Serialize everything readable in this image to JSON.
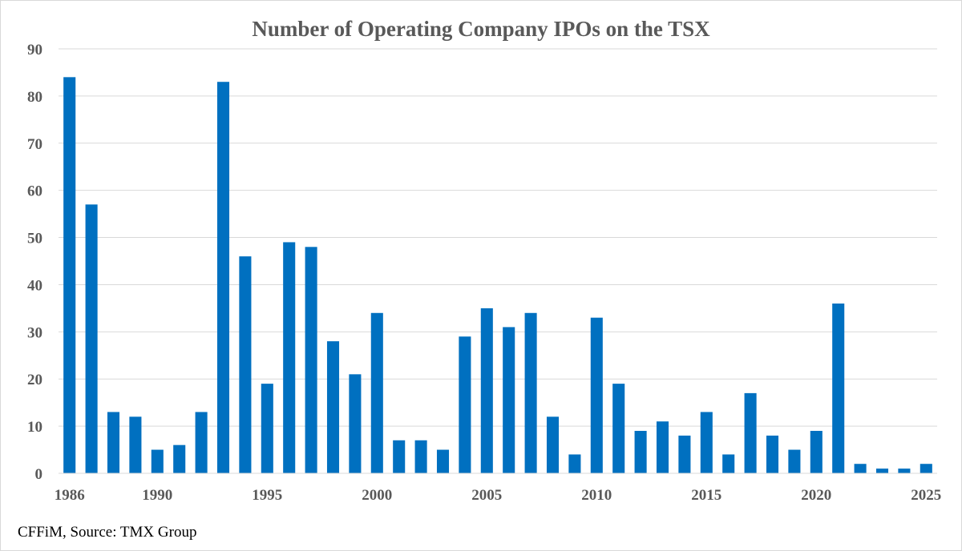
{
  "chart_data": {
    "type": "bar",
    "title": "Number of Operating Company IPOs on the TSX",
    "source_note": "CFFiM, Source: TMX Group",
    "xlabel": "",
    "ylabel": "",
    "ylim": [
      0,
      90
    ],
    "yticks": [
      0,
      10,
      20,
      30,
      40,
      50,
      60,
      70,
      80,
      90
    ],
    "x_tick_labels": [
      "1986",
      "1990",
      "1995",
      "2000",
      "2005",
      "2010",
      "2015",
      "2020",
      "2025"
    ],
    "grid": true,
    "legend": "none",
    "bar_color": "#0070C0",
    "categories": [
      1986,
      1987,
      1988,
      1989,
      1990,
      1991,
      1992,
      1993,
      1994,
      1995,
      1996,
      1997,
      1998,
      1999,
      2000,
      2001,
      2002,
      2003,
      2004,
      2005,
      2006,
      2007,
      2008,
      2009,
      2010,
      2011,
      2012,
      2013,
      2014,
      2015,
      2016,
      2017,
      2018,
      2019,
      2020,
      2021,
      2022,
      2023,
      2024,
      2025
    ],
    "values": [
      84,
      57,
      13,
      12,
      5,
      6,
      13,
      83,
      46,
      19,
      49,
      48,
      28,
      21,
      34,
      7,
      7,
      5,
      29,
      35,
      31,
      34,
      12,
      4,
      33,
      19,
      9,
      11,
      8,
      13,
      4,
      17,
      8,
      5,
      9,
      36,
      2,
      1,
      1,
      2
    ]
  }
}
